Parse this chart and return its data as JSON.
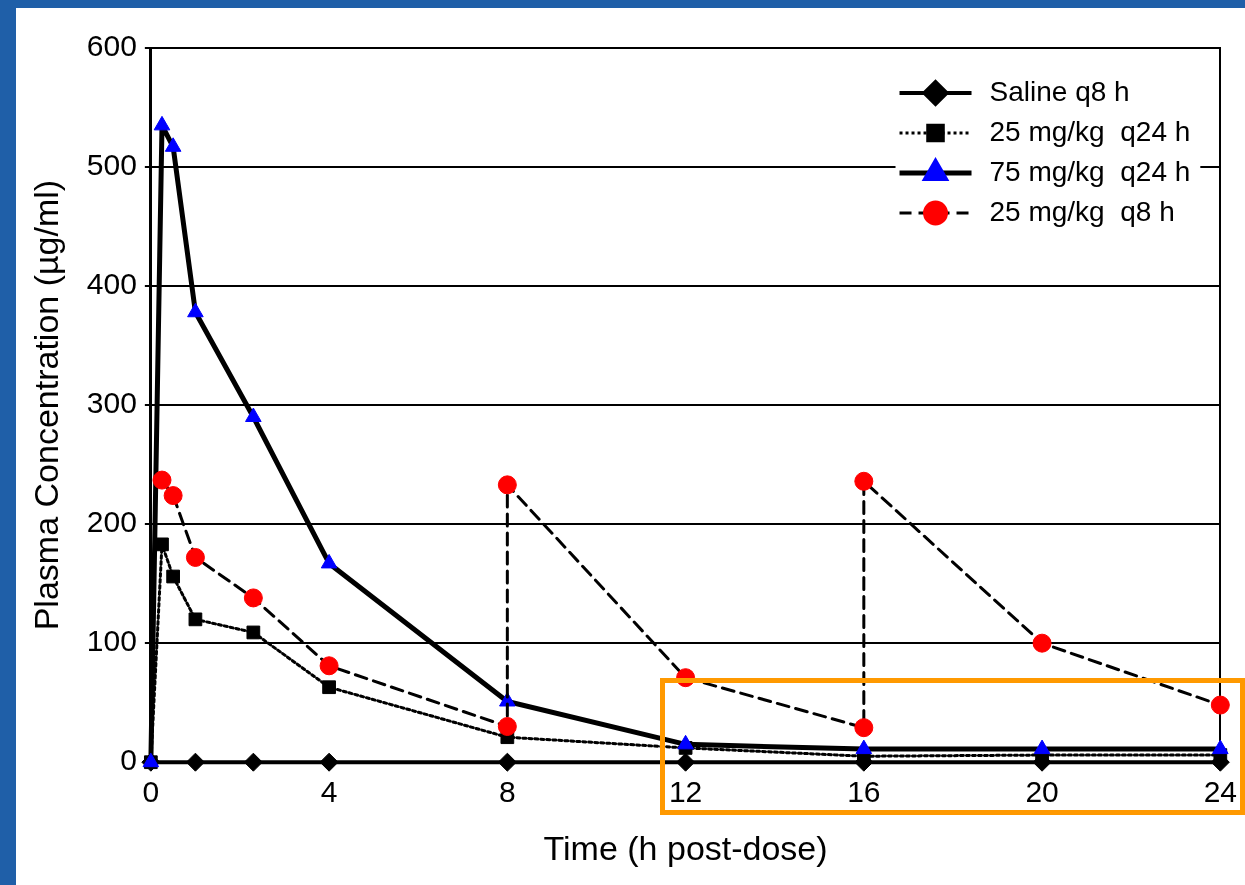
{
  "chart_data": {
    "type": "line",
    "xlabel": "Time (h post-dose)",
    "ylabel": "Plasma Concentration (µg/ml)",
    "xlim": [
      0,
      24
    ],
    "xticks": [
      0,
      4,
      8,
      12,
      16,
      20,
      24
    ],
    "ylim": [
      0,
      600
    ],
    "yticks": [
      0,
      100,
      200,
      300,
      400,
      500,
      600
    ],
    "grid": "y",
    "legend": "top right",
    "series": [
      {
        "name": "Saline q8 h",
        "color": "#000000",
        "marker": "diamond",
        "line_style": "solid",
        "x": [
          0,
          1,
          2.3,
          4,
          8,
          12,
          16,
          20,
          24
        ],
        "values": [
          0,
          0,
          0,
          0,
          0,
          0,
          0,
          0,
          0
        ]
      },
      {
        "name": "25 mg/kg  q24 h",
        "color": "#000000",
        "marker": "square",
        "line_style": "dotted",
        "x": [
          0,
          0.25,
          0.5,
          1,
          2.3,
          4,
          8,
          12,
          16,
          20,
          24
        ],
        "values": [
          0,
          183,
          156,
          120,
          109,
          63,
          21,
          12,
          5,
          6,
          6
        ]
      },
      {
        "name": "75 mg/kg  q24 h",
        "color": "#0000ff",
        "marker": "triangle",
        "line_style": "solid",
        "x": [
          0,
          0.25,
          0.5,
          1,
          2.3,
          4,
          8,
          12,
          16,
          20,
          24
        ],
        "values": [
          0,
          535,
          517,
          378,
          290,
          167,
          51,
          15,
          11,
          11,
          11
        ]
      },
      {
        "name": "25 mg/kg  q8 h",
        "color": "#ff0000",
        "marker": "circle",
        "line_style": "dashed",
        "x": [
          0.25,
          0.5,
          1,
          2.3,
          4,
          8,
          8,
          12,
          16,
          16,
          20,
          24
        ],
        "values": [
          237,
          224,
          172,
          138,
          81,
          30,
          233,
          71,
          29,
          236,
          100,
          48
        ]
      }
    ]
  }
}
